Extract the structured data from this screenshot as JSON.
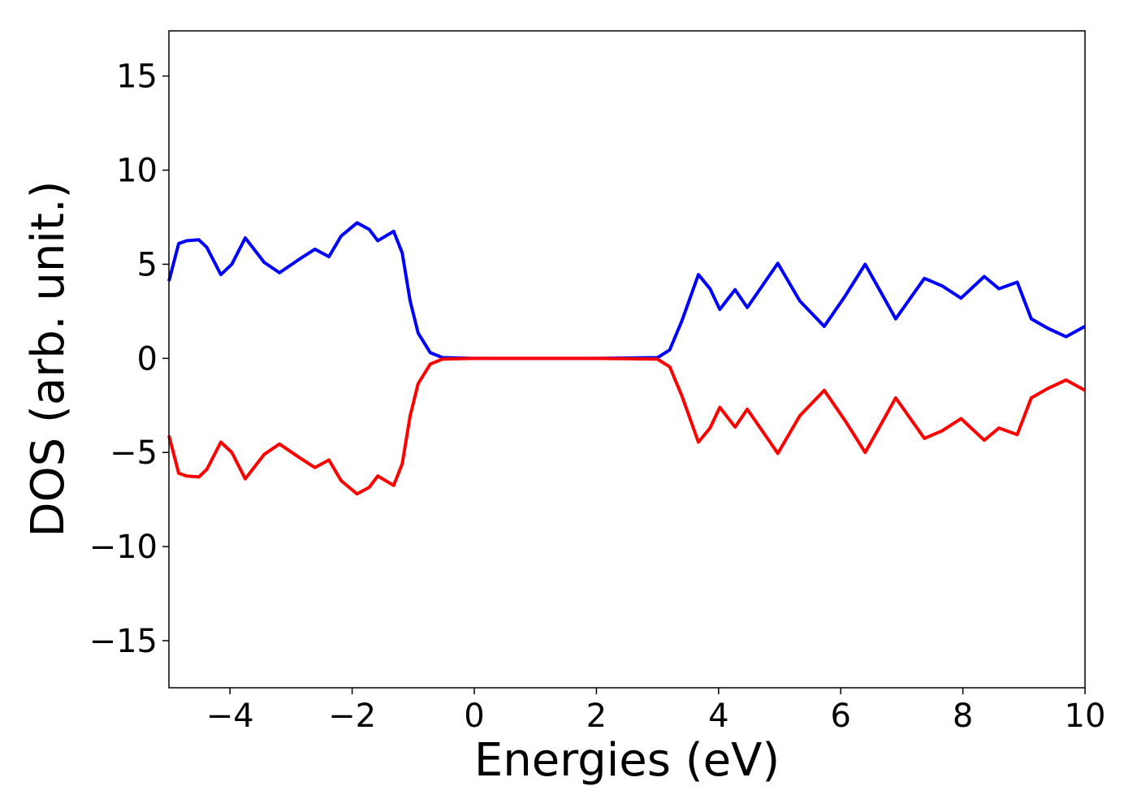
{
  "chart_data": {
    "type": "line",
    "x_label": "Energies (eV)",
    "y_label": "DOS (arb. unit.)",
    "x": [
      -5,
      -4.84,
      -4.71,
      -4.51,
      -4.38,
      -4.15,
      -3.97,
      -3.75,
      -3.44,
      -3.19,
      -2.85,
      -2.61,
      -2.38,
      -2.18,
      -1.92,
      -1.72,
      -1.58,
      -1.32,
      -1.18,
      -1.05,
      -0.92,
      -0.72,
      -0.52,
      0,
      1,
      2,
      3.0,
      3.2,
      3.4,
      3.67,
      3.86,
      4.02,
      4.27,
      4.47,
      4.97,
      5.33,
      5.73,
      6.07,
      6.4,
      6.66,
      6.9,
      7.37,
      7.66,
      7.97,
      8.35,
      8.59,
      8.89,
      9.12,
      9.39,
      9.69,
      10
    ],
    "series": [
      {
        "color": "#0000ff",
        "values": [
          4.1,
          6.1,
          6.25,
          6.3,
          5.9,
          4.45,
          5.0,
          6.4,
          5.1,
          4.55,
          5.3,
          5.8,
          5.4,
          6.5,
          7.2,
          6.85,
          6.25,
          6.75,
          5.6,
          3.05,
          1.35,
          0.3,
          0.04,
          0,
          0,
          0,
          0.04,
          0.45,
          2.0,
          4.45,
          3.7,
          2.6,
          3.65,
          2.7,
          5.05,
          3.05,
          1.7,
          3.3,
          5.0,
          3.5,
          2.1,
          4.25,
          3.85,
          3.2,
          4.35,
          3.7,
          4.05,
          2.1,
          1.6,
          1.15,
          1.7
        ]
      },
      {
        "color": "#ff0000",
        "values": [
          -4.1,
          -6.1,
          -6.25,
          -6.3,
          -5.9,
          -4.45,
          -5.0,
          -6.4,
          -5.1,
          -4.55,
          -5.3,
          -5.8,
          -5.4,
          -6.5,
          -7.2,
          -6.85,
          -6.25,
          -6.75,
          -5.6,
          -3.05,
          -1.35,
          -0.3,
          -0.04,
          0,
          0,
          0,
          -0.04,
          -0.45,
          -2.0,
          -4.45,
          -3.7,
          -2.6,
          -3.65,
          -2.7,
          -5.05,
          -3.05,
          -1.7,
          -3.3,
          -5.0,
          -3.5,
          -2.1,
          -4.25,
          -3.85,
          -3.2,
          -4.35,
          -3.7,
          -4.05,
          -2.1,
          -1.6,
          -1.15,
          -1.7
        ]
      }
    ],
    "xlim": [
      -5,
      10
    ],
    "xticks": [
      {
        "value": -4,
        "label": "−4"
      },
      {
        "value": -2,
        "label": "−2"
      },
      0,
      2,
      4,
      6,
      8,
      10
    ],
    "ylim": [
      -17.5,
      17.4
    ],
    "yticks": [
      {
        "value": -15,
        "label": "−15"
      },
      {
        "value": -10,
        "label": "−10"
      },
      {
        "value": -5,
        "label": "−5"
      },
      0,
      5,
      10,
      15
    ],
    "grid": false
  }
}
